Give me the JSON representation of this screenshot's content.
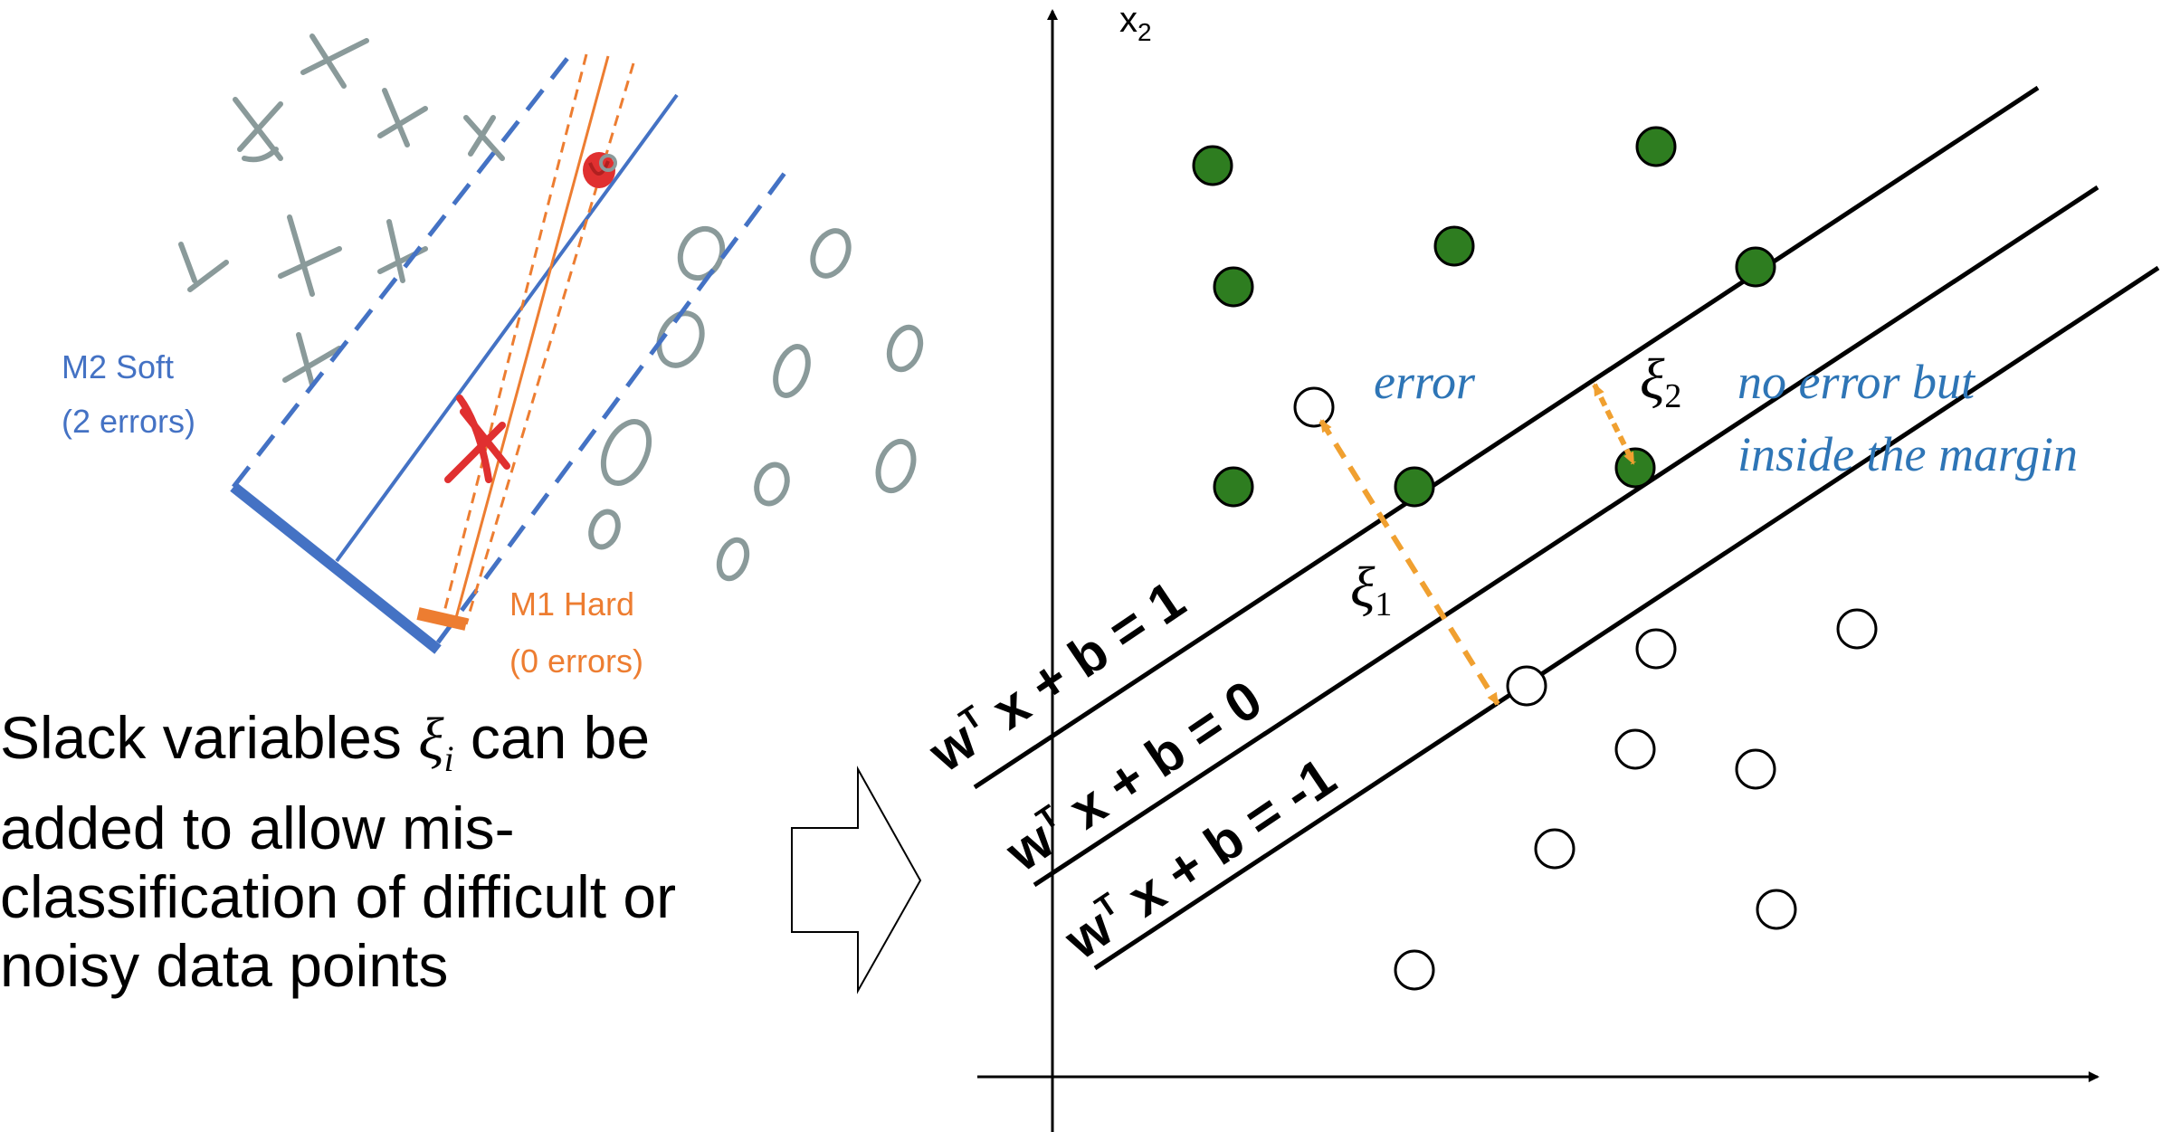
{
  "colors": {
    "blue": "#4472c4",
    "orange": "#ed7d31",
    "dashed_orange": "#f0a030",
    "gray": "#8a9a9a",
    "green": "#2e7d20",
    "red": "#e03030",
    "text_blue": "#2e75b6"
  },
  "left_sketch": {
    "m2_label_line1": "M2 Soft",
    "m2_label_line2": "(2 errors)",
    "m1_label_line1": "M1 Hard",
    "m1_label_line2": "(0 errors)"
  },
  "body_text": {
    "line1_pre": "Slack variables ",
    "xi": "ξ",
    "xi_sub": "i",
    "line1_post": " can be",
    "line2": "added to allow mis-",
    "line3": "classification of difficult or",
    "line4": "noisy data points"
  },
  "right_chart": {
    "axis_y_label": "x",
    "axis_y_sub": "2",
    "line_upper_label": "w",
    "line_upper_sup": "T",
    "line_upper_rest": " x + b = 1",
    "line_middle_label": "w",
    "line_middle_sup": "T",
    "line_middle_rest": " x + b = 0",
    "line_lower_label": "w",
    "line_lower_sup": "T",
    "line_lower_rest": " x + b = -1",
    "error_label": "error",
    "xi1": "ξ",
    "xi1_sub": "1",
    "xi2": "ξ",
    "xi2_sub": "2",
    "margin_note_line1": "no error but",
    "margin_note_line2": "inside the margin"
  }
}
